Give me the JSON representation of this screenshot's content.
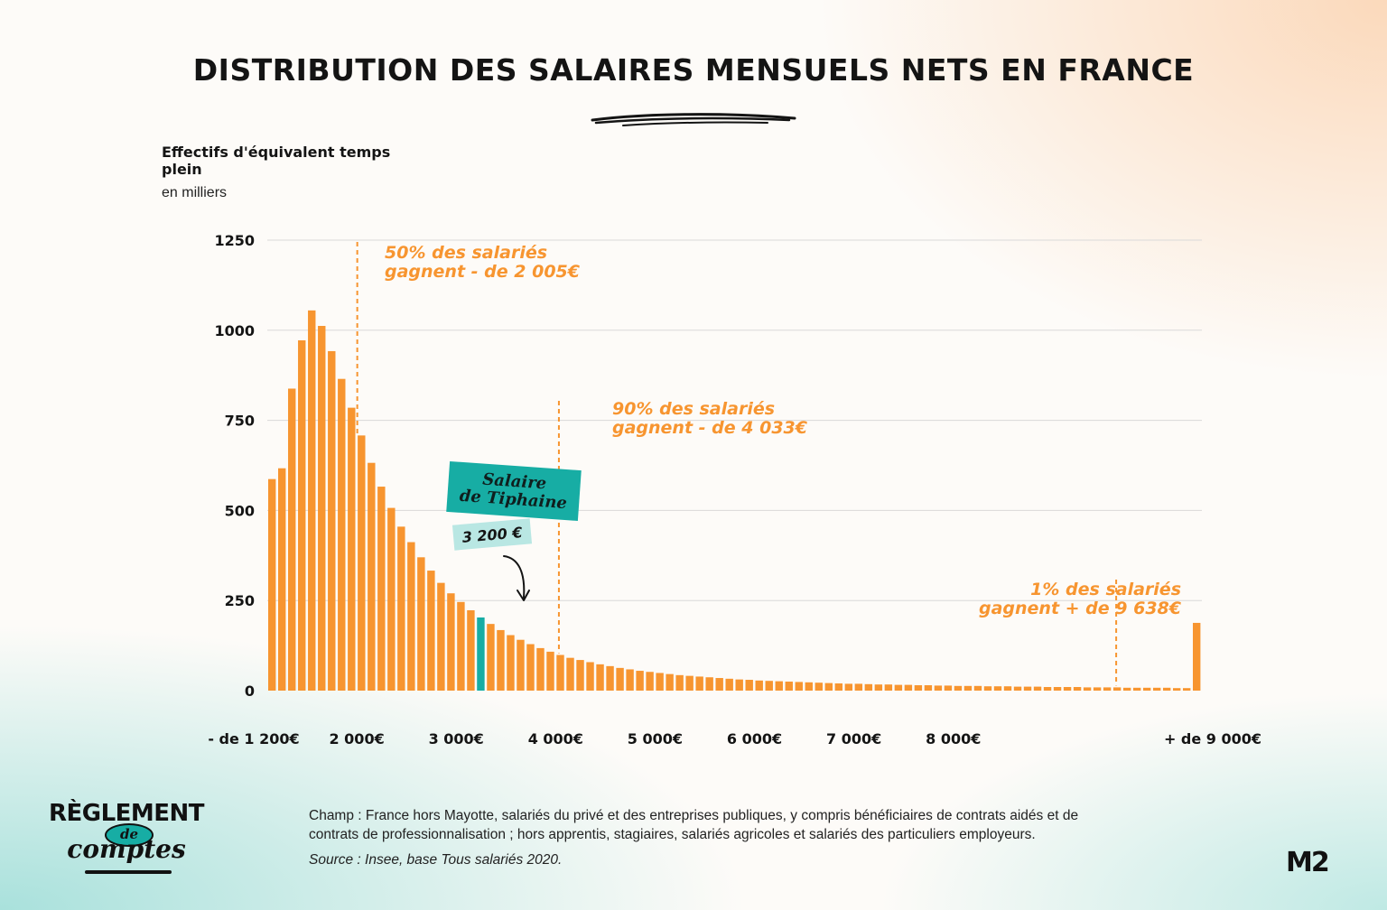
{
  "page": {
    "title": "DISTRIBUTION DES SALAIRES MENSUELS NETS EN FRANCE",
    "footer": "Champ : France hors Mayotte, salariés du privé et des entreprises publiques, y compris bénéficiaires de contrats aidés et de contrats de professionnalisation ; hors apprentis, stagiaires, salariés agricoles et salariés des particuliers employeurs.",
    "source": "Source : Insee, base Tous salariés 2020.",
    "logo": {
      "top": "RÈGLEMENT",
      "middle": "de",
      "bottom": "comptes"
    },
    "brand": "M2"
  },
  "chart_data": {
    "type": "bar",
    "ylabel": "Effectifs d'équivalent temps plein",
    "yunit": "en milliers",
    "ylim": [
      0,
      1250
    ],
    "yticks": [
      0,
      250,
      500,
      750,
      1000,
      1250
    ],
    "grid": true,
    "x_axis": {
      "ticks": [
        {
          "label": "- de 1 200€",
          "value": 1200
        },
        {
          "label": "2 000€",
          "value": 2000
        },
        {
          "label": "3 000€",
          "value": 3000
        },
        {
          "label": "4 000€",
          "value": 4000
        },
        {
          "label": "5 000€",
          "value": 5000
        },
        {
          "label": "6 000€",
          "value": 6000
        },
        {
          "label": "7 000€",
          "value": 7000
        },
        {
          "label": "8 000€",
          "value": 8000
        },
        {
          "label": "+ de 9 000€",
          "value": 9000
        }
      ]
    },
    "bins": {
      "start": 1200,
      "width": 100,
      "first_label": "- de 1 200€",
      "last_label": "+ de 9 000€"
    },
    "values": [
      587,
      617,
      838,
      972,
      1055,
      1012,
      942,
      865,
      785,
      708,
      632,
      566,
      507,
      455,
      412,
      370,
      333,
      299,
      270,
      246,
      223,
      203,
      185,
      168,
      154,
      141,
      129,
      118,
      108,
      99,
      91,
      85,
      79,
      73,
      68,
      63,
      59,
      55,
      52,
      49,
      46,
      43,
      41,
      39,
      37,
      35,
      33,
      31,
      30,
      28,
      27,
      26,
      25,
      24,
      23,
      22,
      21,
      20,
      19,
      19,
      18,
      17,
      17,
      16,
      16,
      15,
      15,
      14,
      14,
      13,
      13,
      13,
      12,
      12,
      12,
      11,
      11,
      11,
      10,
      10,
      10,
      10,
      9,
      9,
      9,
      9,
      8,
      8,
      8,
      8,
      8,
      7,
      7,
      188
    ],
    "colors": {
      "bar": "#f79530",
      "highlight": "#17ada4",
      "annotation": "#f79530"
    },
    "highlight": {
      "bin_start": 3200,
      "label_lines": [
        "Salaire",
        "de Tiphaine"
      ],
      "value_label": "3 200 €"
    },
    "annotations": [
      {
        "x": 2005,
        "lines": [
          "50% des salariés",
          "gagnent - de 2 005€"
        ]
      },
      {
        "x": 4033,
        "lines": [
          "90% des salariés",
          "gagnent - de 4 033€"
        ]
      },
      {
        "x": 9638,
        "lines": [
          "1% des salariés",
          "gagnent + de 9 638€"
        ]
      }
    ]
  }
}
